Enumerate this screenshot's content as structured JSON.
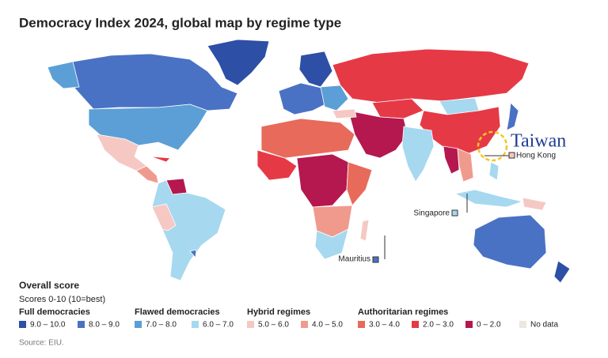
{
  "title": "Democracy Index 2024, global map by regime type",
  "annotations": {
    "taiwan": "Taiwan",
    "hong_kong": "Hong Kong",
    "singapore": "Singapore",
    "mauritius": "Mauritius"
  },
  "legend": {
    "title": "Overall score",
    "subtitle": "Scores 0-10 (10=best)",
    "groups": [
      {
        "name": "Full democracies",
        "items": [
          {
            "label": "9.0 – 10.0",
            "color": "#2e4fa6"
          },
          {
            "label": "8.0 – 9.0",
            "color": "#4a72c4"
          }
        ]
      },
      {
        "name": "Flawed democracies",
        "items": [
          {
            "label": "7.0 – 8.0",
            "color": "#5b9fd6"
          },
          {
            "label": "6.0 – 7.0",
            "color": "#a6d8f0"
          }
        ]
      },
      {
        "name": "Hybrid regimes",
        "items": [
          {
            "label": "5.0 – 6.0",
            "color": "#f5c8c4"
          },
          {
            "label": "4.0 – 5.0",
            "color": "#f09a8e"
          }
        ]
      },
      {
        "name": "Authoritarian regimes",
        "items": [
          {
            "label": "3.0 – 4.0",
            "color": "#e86a5b"
          },
          {
            "label": "2.0 – 3.0",
            "color": "#e63946"
          },
          {
            "label": "0 – 2.0",
            "color": "#b5174f"
          },
          {
            "label": "No data",
            "color": "#ece8e0"
          }
        ]
      }
    ]
  },
  "source": "Source: EIU."
}
